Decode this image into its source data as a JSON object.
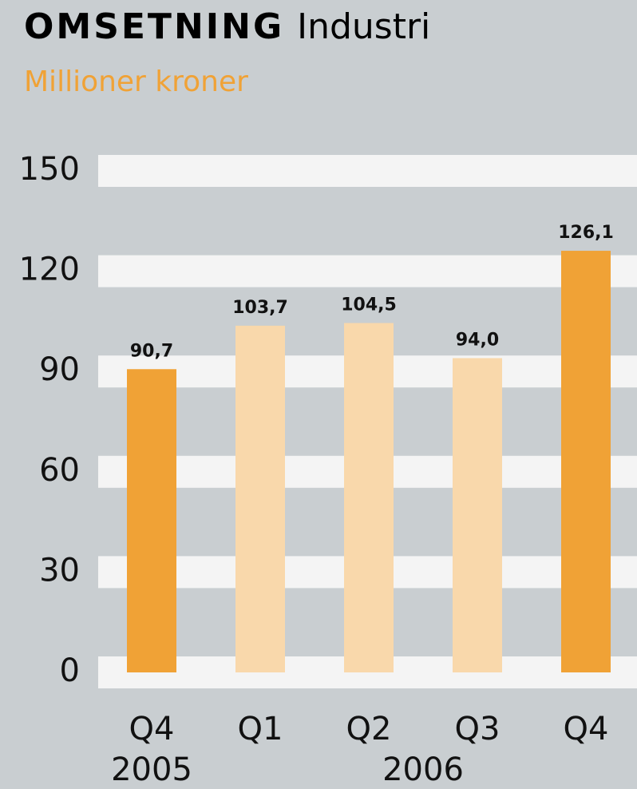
{
  "chart_data": {
    "type": "bar",
    "title": "OMSETNING",
    "title_addition": "Industri",
    "subtitle": "Millioner kroner",
    "categories": [
      "Q4",
      "Q1",
      "Q2",
      "Q3",
      "Q4"
    ],
    "category_groups": [
      "2005",
      "2006"
    ],
    "values": [
      90.7,
      103.7,
      104.5,
      94.0,
      126.1
    ],
    "value_labels": [
      "90,7",
      "103,7",
      "104,5",
      "94,0",
      "126,1"
    ],
    "colors": [
      "#f0a236",
      "#f9d8ab",
      "#f9d8ab",
      "#f9d8ab",
      "#f0a236"
    ],
    "ylim": [
      0,
      150
    ],
    "yticks": [
      0,
      30,
      60,
      90,
      120,
      150
    ],
    "grid": true
  }
}
